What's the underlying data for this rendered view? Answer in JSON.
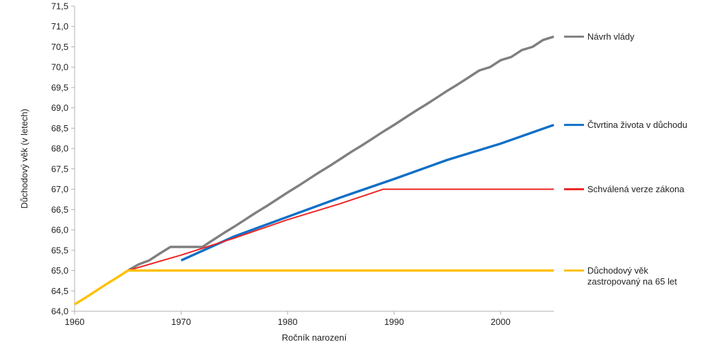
{
  "chart_data": {
    "type": "line",
    "title": "",
    "xlabel": "Ročník narození",
    "ylabel": "Důchodový věk (v letech)",
    "xlim": [
      1960,
      2005
    ],
    "ylim": [
      64.0,
      71.5
    ],
    "x_ticks": [
      {
        "value": 1960,
        "label": "1960"
      },
      {
        "value": 1970,
        "label": "1970"
      },
      {
        "value": 1980,
        "label": "1980"
      },
      {
        "value": 1990,
        "label": "1990"
      },
      {
        "value": 2000,
        "label": "2000"
      }
    ],
    "y_ticks": [
      {
        "value": 64.0,
        "label": "64,0"
      },
      {
        "value": 64.5,
        "label": "64,5"
      },
      {
        "value": 65.0,
        "label": "65,0"
      },
      {
        "value": 65.5,
        "label": "65,5"
      },
      {
        "value": 66.0,
        "label": "66,0"
      },
      {
        "value": 66.5,
        "label": "66,5"
      },
      {
        "value": 67.0,
        "label": "67,0"
      },
      {
        "value": 67.5,
        "label": "67,5"
      },
      {
        "value": 68.0,
        "label": "68,0"
      },
      {
        "value": 68.5,
        "label": "68,5"
      },
      {
        "value": 69.0,
        "label": "69,0"
      },
      {
        "value": 69.5,
        "label": "69,5"
      },
      {
        "value": 70.0,
        "label": "70,0"
      },
      {
        "value": 70.5,
        "label": "70,5"
      },
      {
        "value": 71.0,
        "label": "71,0"
      },
      {
        "value": 71.5,
        "label": "71,5"
      }
    ],
    "grid": false,
    "legend_placement": "right",
    "series": [
      {
        "name": "Návrh vlády",
        "color": "#7f7f7f",
        "width": 3.5,
        "points": [
          [
            1965,
            65.0
          ],
          [
            1966,
            65.15
          ],
          [
            1967,
            65.25
          ],
          [
            1968,
            65.42
          ],
          [
            1969,
            65.58
          ],
          [
            1970,
            65.58
          ],
          [
            1971,
            65.58
          ],
          [
            1972,
            65.58
          ],
          [
            1973,
            65.75
          ],
          [
            1974,
            65.92
          ],
          [
            1975,
            66.08
          ],
          [
            1976,
            66.25
          ],
          [
            1977,
            66.42
          ],
          [
            1978,
            66.58
          ],
          [
            1979,
            66.75
          ],
          [
            1980,
            66.92
          ],
          [
            1981,
            67.08
          ],
          [
            1982,
            67.25
          ],
          [
            1983,
            67.42
          ],
          [
            1984,
            67.58
          ],
          [
            1985,
            67.75
          ],
          [
            1986,
            67.92
          ],
          [
            1987,
            68.08
          ],
          [
            1988,
            68.25
          ],
          [
            1989,
            68.42
          ],
          [
            1990,
            68.58
          ],
          [
            1991,
            68.75
          ],
          [
            1992,
            68.92
          ],
          [
            1993,
            69.08
          ],
          [
            1994,
            69.25
          ],
          [
            1995,
            69.42
          ],
          [
            1996,
            69.58
          ],
          [
            1997,
            69.75
          ],
          [
            1998,
            69.92
          ],
          [
            1999,
            70.0
          ],
          [
            2000,
            70.17
          ],
          [
            2001,
            70.25
          ],
          [
            2002,
            70.42
          ],
          [
            2003,
            70.5
          ],
          [
            2004,
            70.67
          ],
          [
            2005,
            70.75
          ]
        ]
      },
      {
        "name": "Čtvrtina života v důchodu",
        "color": "#0f6fc6",
        "width": 3.5,
        "points": [
          [
            1970,
            65.25
          ],
          [
            1975,
            65.84
          ],
          [
            1980,
            66.32
          ],
          [
            1985,
            66.8
          ],
          [
            1990,
            67.25
          ],
          [
            1995,
            67.72
          ],
          [
            2000,
            68.12
          ],
          [
            2005,
            68.58
          ]
        ]
      },
      {
        "name": "Schválená verze zákona",
        "color": "#ee2222",
        "width": 2,
        "points": [
          [
            1965,
            65.0
          ],
          [
            1970,
            65.38
          ],
          [
            1975,
            65.8
          ],
          [
            1980,
            66.25
          ],
          [
            1985,
            66.65
          ],
          [
            1989,
            67.0
          ],
          [
            2005,
            67.0
          ]
        ]
      },
      {
        "name": "Důchodový věk zastropovaný na 65 let",
        "color": "#ffc000",
        "width": 3.5,
        "points": [
          [
            1960,
            64.17
          ],
          [
            1961,
            64.33
          ],
          [
            1962,
            64.5
          ],
          [
            1963,
            64.67
          ],
          [
            1964,
            64.83
          ],
          [
            1965,
            65.0
          ],
          [
            2005,
            65.0
          ]
        ]
      }
    ],
    "legend": [
      {
        "lines": [
          "Návrh vlády"
        ],
        "color": "#7f7f7f",
        "anchor_y": 70.75
      },
      {
        "lines": [
          "Čtvrtina života v důchodu"
        ],
        "color": "#0f6fc6",
        "anchor_y": 68.58
      },
      {
        "lines": [
          "Schválená verze zákona"
        ],
        "color": "#ee2222",
        "anchor_y": 67.0
      },
      {
        "lines": [
          "Důchodový věk",
          "zastropovaný na 65 let"
        ],
        "color": "#ffc000",
        "anchor_y": 65.0
      }
    ]
  }
}
